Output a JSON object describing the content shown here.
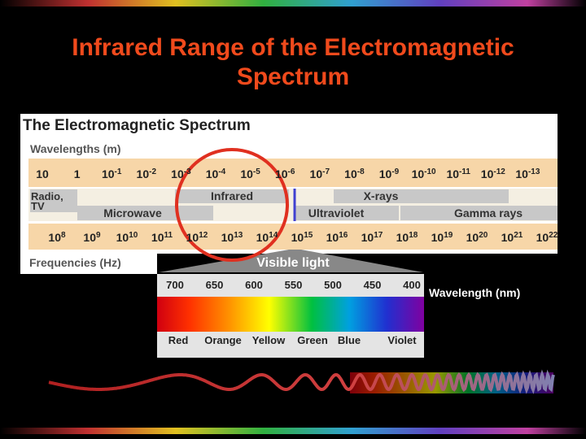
{
  "title": "Infrared Range of the Electromagnetic Spectrum",
  "diagram": {
    "heading": "The Electromagnetic Spectrum",
    "wavelength_label": "Wavelengths (m)",
    "wavelengths": [
      {
        "base": "10"
      },
      {
        "base": "1"
      },
      {
        "base": "10",
        "exp": "-1"
      },
      {
        "base": "10",
        "exp": "-2"
      },
      {
        "base": "10",
        "exp": "-3"
      },
      {
        "base": "10",
        "exp": "-4"
      },
      {
        "base": "10",
        "exp": "-5"
      },
      {
        "base": "10",
        "exp": "-6"
      },
      {
        "base": "10",
        "exp": "-7"
      },
      {
        "base": "10",
        "exp": "-8"
      },
      {
        "base": "10",
        "exp": "-9"
      },
      {
        "base": "10",
        "exp": "-10"
      },
      {
        "base": "10",
        "exp": "-11"
      },
      {
        "base": "10",
        "exp": "-12"
      },
      {
        "base": "10",
        "exp": "-13"
      }
    ],
    "bands_top": [
      "Infrared",
      "X-rays"
    ],
    "radio": [
      "Radio,",
      "TV"
    ],
    "bands_bottom": [
      "Microwave",
      "Ultraviolet",
      "Gamma rays"
    ],
    "frequencies": [
      {
        "base": "10",
        "exp": "8"
      },
      {
        "base": "10",
        "exp": "9"
      },
      {
        "base": "10",
        "exp": "10"
      },
      {
        "base": "10",
        "exp": "11"
      },
      {
        "base": "10",
        "exp": "12"
      },
      {
        "base": "10",
        "exp": "13"
      },
      {
        "base": "10",
        "exp": "14"
      },
      {
        "base": "10",
        "exp": "15"
      },
      {
        "base": "10",
        "exp": "16"
      },
      {
        "base": "10",
        "exp": "17"
      },
      {
        "base": "10",
        "exp": "18"
      },
      {
        "base": "10",
        "exp": "19"
      },
      {
        "base": "10",
        "exp": "20"
      },
      {
        "base": "10",
        "exp": "21"
      },
      {
        "base": "10",
        "exp": "22"
      }
    ],
    "frequency_label": "Frequencies (Hz)",
    "visible_title": "Visible light",
    "visible_wavelengths": [
      "700",
      "650",
      "600",
      "550",
      "500",
      "450",
      "400"
    ],
    "visible_unit": "Wavelength (nm)",
    "colors": [
      "Red",
      "Orange",
      "Yellow",
      "Green",
      "Blue",
      "Violet"
    ]
  }
}
